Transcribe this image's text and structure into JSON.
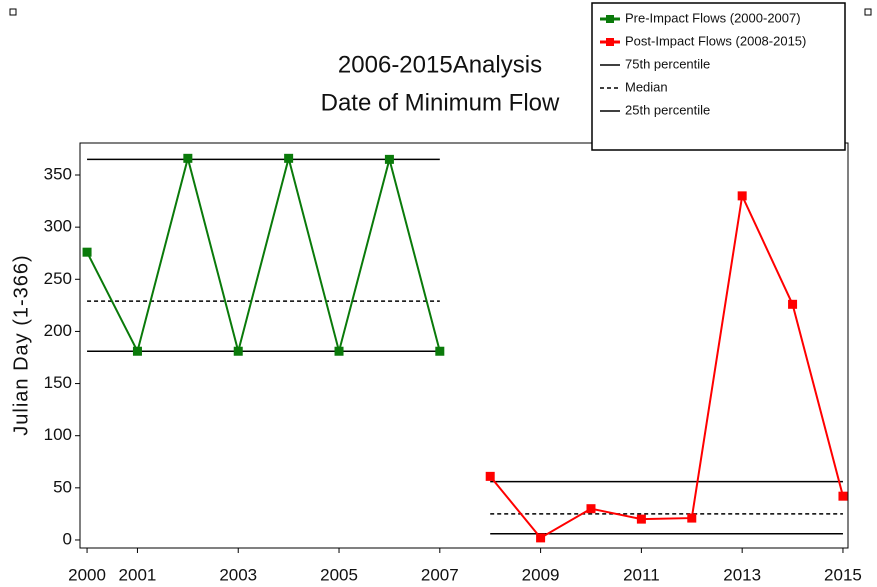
{
  "chart_data": {
    "type": "line",
    "title": [
      "2006-2015Analysis",
      "Date of Minimum Flow"
    ],
    "y_label": "Julian Day (1-366)",
    "series": [
      {
        "name": "Pre-Impact Flows (2000-2007)",
        "color": "#0a7a0a",
        "x": [
          2000,
          2001,
          2002,
          2003,
          2004,
          2005,
          2006,
          2007
        ],
        "values": [
          276,
          181,
          366,
          181,
          366,
          181,
          365,
          181
        ]
      },
      {
        "name": "Post-Impact Flows (2008-2015)",
        "color": "#ff0000",
        "x": [
          2008,
          2009,
          2010,
          2011,
          2012,
          2013,
          2014,
          2015
        ],
        "values": [
          61,
          2,
          30,
          20,
          21,
          330,
          226,
          42
        ]
      }
    ],
    "reference_lines": [
      {
        "name": "75th percentile",
        "dashed": false,
        "values": [
          365,
          56
        ]
      },
      {
        "name": "Median",
        "dashed": true,
        "values": [
          229,
          25
        ]
      },
      {
        "name": "25th percentile",
        "dashed": false,
        "values": [
          181,
          6
        ]
      }
    ],
    "xlim": [
      1999.86,
      2015.1
    ],
    "ylim": [
      -7.7,
      380.7
    ],
    "xticks": [
      2000,
      2001,
      2003,
      2005,
      2007,
      2009,
      2011,
      2013,
      2015
    ],
    "yticks": [
      0,
      50,
      100,
      150,
      200,
      250,
      300,
      350
    ],
    "legend": "top-right"
  }
}
